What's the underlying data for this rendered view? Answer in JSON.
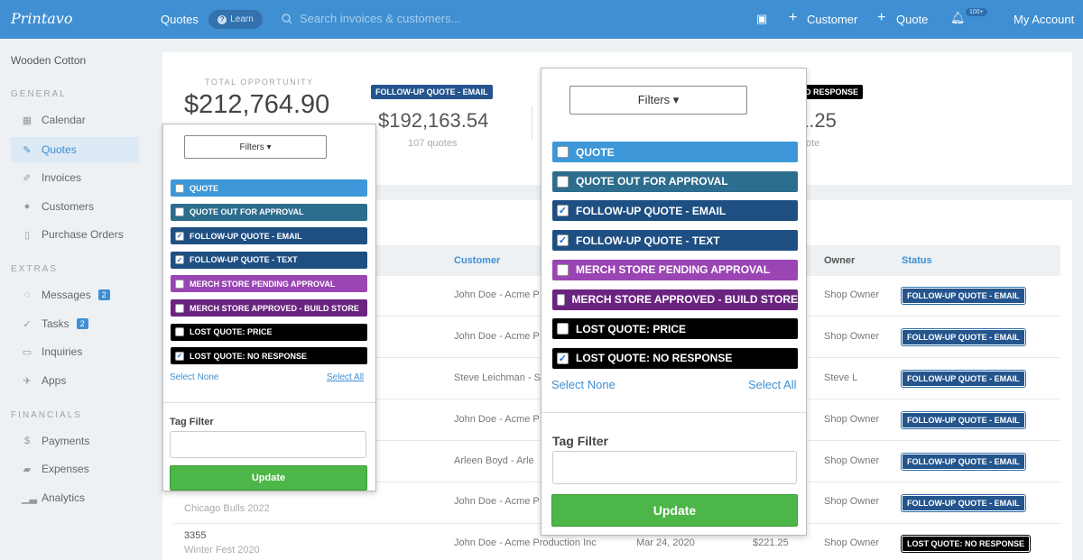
{
  "topbar": {
    "logo": "Printavo",
    "quotes": "Quotes",
    "learn": "Learn",
    "search_placeholder": "Search invoices & customers...",
    "customer": "Customer",
    "quote": "Quote",
    "notif_count": "100+",
    "account": "My Account"
  },
  "sidebar": {
    "company": "Wooden Cotton",
    "general": "GENERAL",
    "extras": "EXTRAS",
    "financials": "FINANCIALS",
    "items": [
      {
        "label": "Calendar"
      },
      {
        "label": "Quotes"
      },
      {
        "label": "Invoices"
      },
      {
        "label": "Customers"
      },
      {
        "label": "Purchase Orders"
      },
      {
        "label": "Messages",
        "count": "2"
      },
      {
        "label": "Tasks",
        "count": "2"
      },
      {
        "label": "Inquiries"
      },
      {
        "label": "Apps"
      },
      {
        "label": "Payments"
      },
      {
        "label": "Expenses"
      },
      {
        "label": "Analytics"
      }
    ]
  },
  "summary": {
    "total_label": "TOTAL OPPORTUNITY",
    "total": "$212,764.90",
    "stage1_tag": "FOLLOW-UP QUOTE - EMAIL",
    "stage1_amount": "$192,163.54",
    "stage1_count": "107 quotes",
    "stage2_tag": "NO RESPONSE",
    "stage2_amount": "1.25",
    "stage2_count": "ote"
  },
  "table": {
    "headers": {
      "customer": "Customer",
      "owner": "Owner",
      "status": "Status"
    },
    "rows": [
      {
        "customer": "John Doe - Acme P",
        "owner": "Shop Owner",
        "status": "FOLLOW-UP QUOTE - EMAIL"
      },
      {
        "customer": "John Doe - Acme P",
        "owner": "Shop Owner",
        "status": "FOLLOW-UP QUOTE - EMAIL"
      },
      {
        "customer": "Steve Leichman - S",
        "owner": "Steve L",
        "status": "FOLLOW-UP QUOTE - EMAIL"
      },
      {
        "customer": "John Doe - Acme P",
        "owner": "Shop Owner",
        "status": "FOLLOW-UP QUOTE - EMAIL"
      },
      {
        "customer": "Arleen Boyd - Arle",
        "owner": "Shop Owner",
        "status": "FOLLOW-UP QUOTE - EMAIL"
      },
      {
        "nickname": "Chicago Bulls 2022",
        "customer": "John Doe - Acme P",
        "owner": "Shop Owner",
        "status": "FOLLOW-UP QUOTE - EMAIL"
      },
      {
        "number": "3355",
        "nickname": "Winter Fest 2020",
        "customer": "John Doe - Acme Production Inc",
        "date": "Mar 24, 2020",
        "total": "$221.25",
        "owner": "Shop Owner",
        "status": "LOST QUOTE: NO RESPONSE"
      }
    ]
  },
  "filter": {
    "button": "Filters ▾",
    "select_none": "Select None",
    "select_all": "Select All",
    "tag_filter": "Tag Filter",
    "update": "Update",
    "options": [
      {
        "label": "QUOTE",
        "color": "#3d97d8",
        "checked": false
      },
      {
        "label": "QUOTE OUT FOR APPROVAL",
        "color": "#2d6d8e",
        "checked": false
      },
      {
        "label": "FOLLOW-UP QUOTE - EMAIL",
        "color": "#1e4f82",
        "checked": true
      },
      {
        "label": "FOLLOW-UP QUOTE - TEXT",
        "color": "#1e4f82",
        "checked": true
      },
      {
        "label": "MERCH STORE PENDING APPROVAL",
        "color": "#9a45b3",
        "checked": false
      },
      {
        "label": "MERCH STORE APPROVED - BUILD STORE",
        "color": "#6a2480",
        "checked": false
      },
      {
        "label": "LOST QUOTE: PRICE",
        "color": "#000000",
        "checked": false
      },
      {
        "label": "LOST QUOTE: NO RESPONSE",
        "color": "#000000",
        "checked": true
      }
    ]
  }
}
